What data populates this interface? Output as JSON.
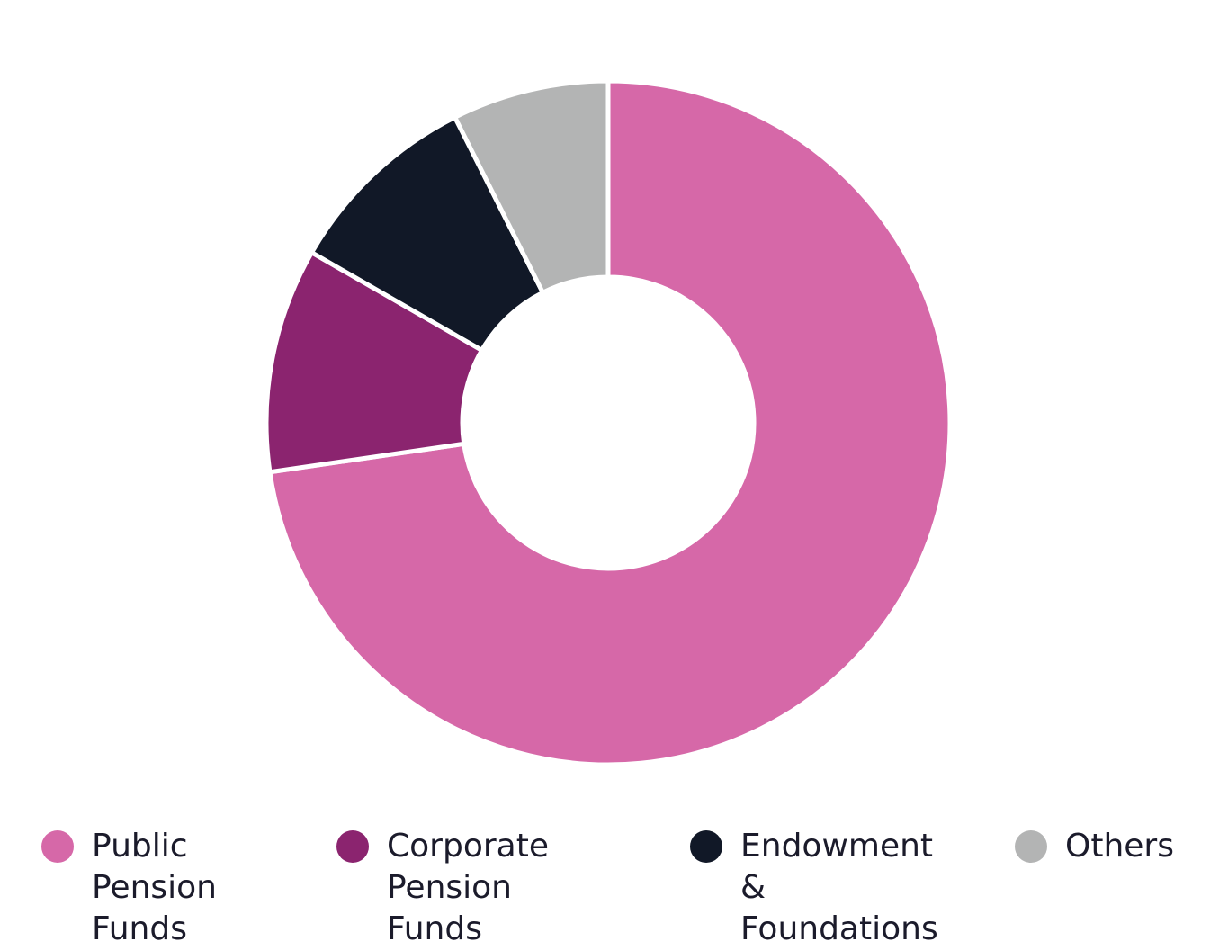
{
  "chart_data": {
    "type": "pie",
    "title": "",
    "donut": true,
    "unit": "%",
    "legend_position": "bottom",
    "series": [
      {
        "name": "Public\nPension Funds",
        "value": 72.7,
        "color": "#d668a8"
      },
      {
        "name": "Corporate\nPension Funds",
        "value": 10.6,
        "color": "#8b246f"
      },
      {
        "name": "Endowment &\nFoundations",
        "value": 9.3,
        "color": "#111827"
      },
      {
        "name": "Others",
        "value": 7.4,
        "color": "#b3b4b4"
      }
    ]
  }
}
